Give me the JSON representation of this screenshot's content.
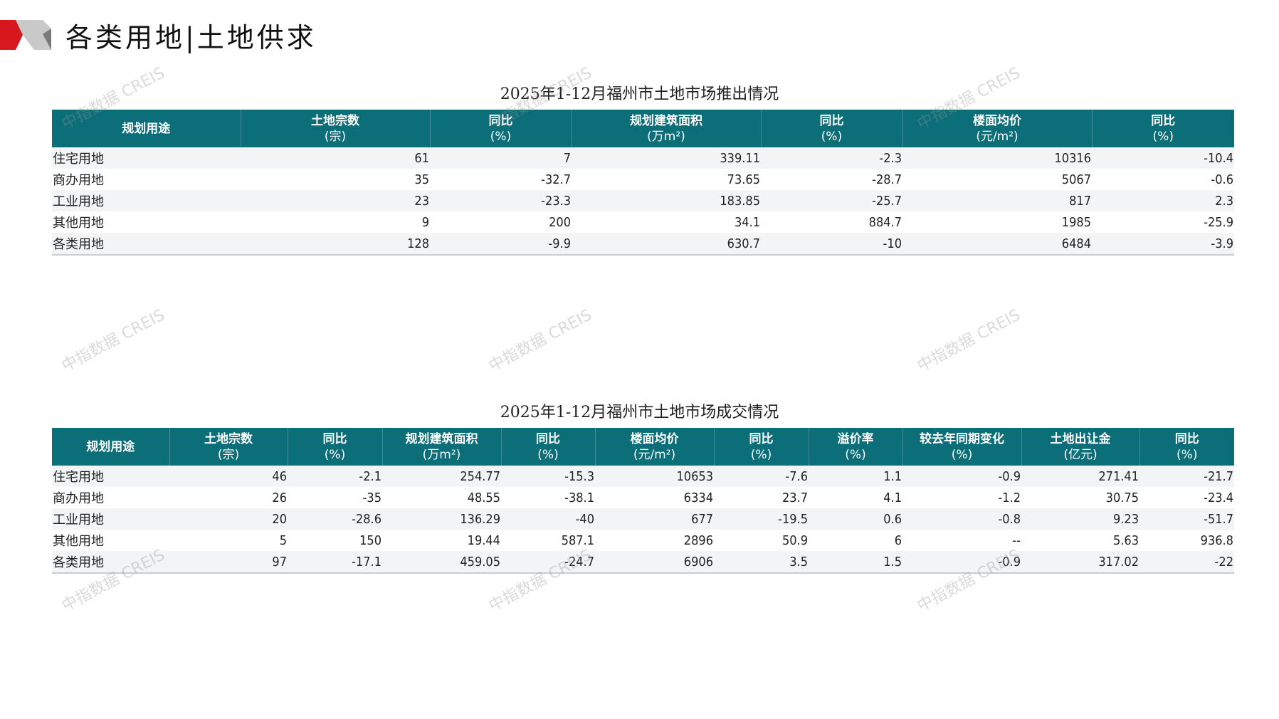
{
  "header": {
    "title": "各类用地|土地供求"
  },
  "watermark": "中指数据 CREIS",
  "colors": {
    "header_bg": "#0c6e78",
    "accent_red": "#d7161e"
  },
  "supply": {
    "title": "2025年1-12月福州市土地市场推出情况",
    "columns": [
      {
        "label": "规划用途",
        "unit": ""
      },
      {
        "label": "土地宗数",
        "unit": "(宗)"
      },
      {
        "label": "同比",
        "unit": "(%)"
      },
      {
        "label": "规划建筑面积",
        "unit": "(万m²)"
      },
      {
        "label": "同比",
        "unit": "(%)"
      },
      {
        "label": "楼面均价",
        "unit": "(元/m²)"
      },
      {
        "label": "同比",
        "unit": "(%)"
      }
    ],
    "rows": [
      [
        "住宅用地",
        "61",
        "7",
        "339.11",
        "-2.3",
        "10316",
        "-10.4"
      ],
      [
        "商办用地",
        "35",
        "-32.7",
        "73.65",
        "-28.7",
        "5067",
        "-0.6"
      ],
      [
        "工业用地",
        "23",
        "-23.3",
        "183.85",
        "-25.7",
        "817",
        "2.3"
      ],
      [
        "其他用地",
        "9",
        "200",
        "34.1",
        "884.7",
        "1985",
        "-25.9"
      ],
      [
        "各类用地",
        "128",
        "-9.9",
        "630.7",
        "-10",
        "6484",
        "-3.9"
      ]
    ]
  },
  "deals": {
    "title": "2025年1-12月福州市土地市场成交情况",
    "columns": [
      {
        "label": "规划用途",
        "unit": ""
      },
      {
        "label": "土地宗数",
        "unit": "(宗)"
      },
      {
        "label": "同比",
        "unit": "(%)"
      },
      {
        "label": "规划建筑面积",
        "unit": "(万m²)"
      },
      {
        "label": "同比",
        "unit": "(%)"
      },
      {
        "label": "楼面均价",
        "unit": "(元/m²)"
      },
      {
        "label": "同比",
        "unit": "(%)"
      },
      {
        "label": "溢价率",
        "unit": "(%)"
      },
      {
        "label": "较去年同期变化",
        "unit": "(%)"
      },
      {
        "label": "土地出让金",
        "unit": "(亿元)"
      },
      {
        "label": "同比",
        "unit": "(%)"
      }
    ],
    "rows": [
      [
        "住宅用地",
        "46",
        "-2.1",
        "254.77",
        "-15.3",
        "10653",
        "-7.6",
        "1.1",
        "-0.9",
        "271.41",
        "-21.7"
      ],
      [
        "商办用地",
        "26",
        "-35",
        "48.55",
        "-38.1",
        "6334",
        "23.7",
        "4.1",
        "-1.2",
        "30.75",
        "-23.4"
      ],
      [
        "工业用地",
        "20",
        "-28.6",
        "136.29",
        "-40",
        "677",
        "-19.5",
        "0.6",
        "-0.8",
        "9.23",
        "-51.7"
      ],
      [
        "其他用地",
        "5",
        "150",
        "19.44",
        "587.1",
        "2896",
        "50.9",
        "6",
        "--",
        "5.63",
        "936.8"
      ],
      [
        "各类用地",
        "97",
        "-17.1",
        "459.05",
        "-24.7",
        "6906",
        "3.5",
        "1.5",
        "-0.9",
        "317.02",
        "-22"
      ]
    ]
  }
}
